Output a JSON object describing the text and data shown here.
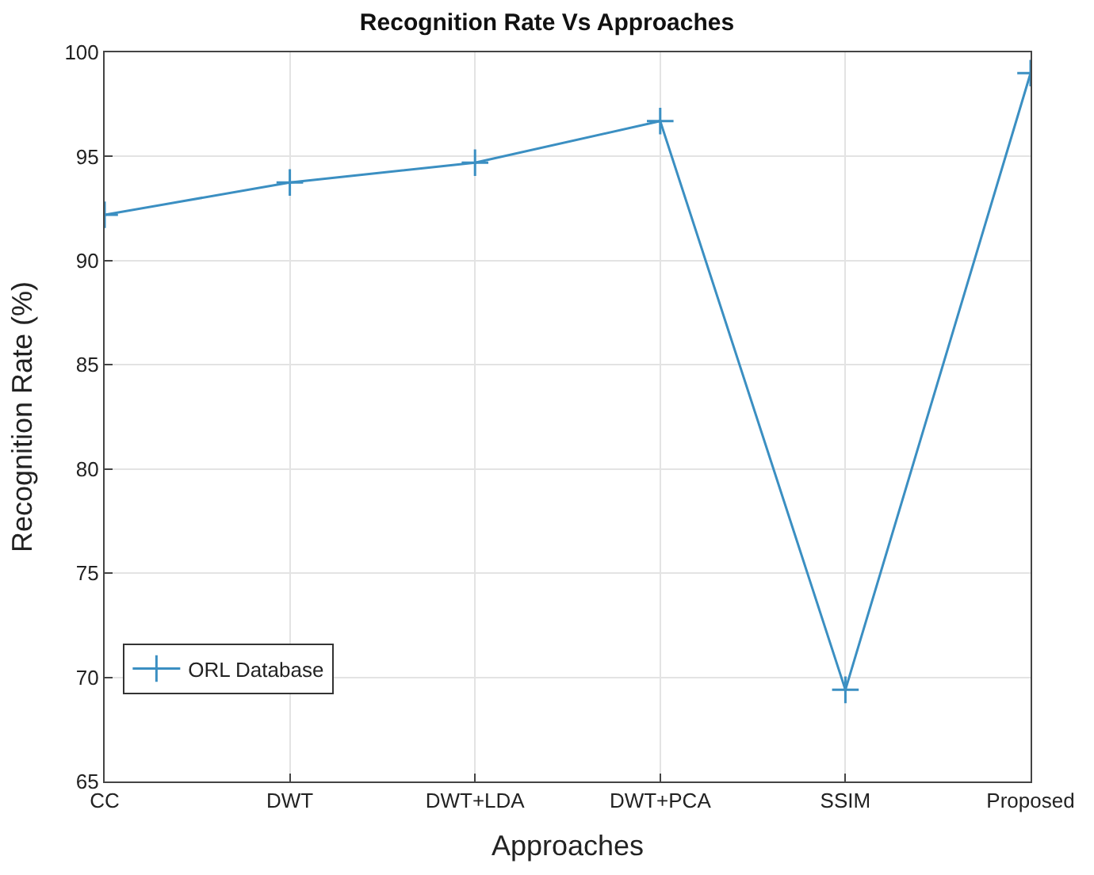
{
  "chart_data": {
    "type": "line",
    "title": "Recognition Rate Vs Approaches",
    "xlabel": "Approaches",
    "ylabel": "Recognition Rate (%)",
    "categories": [
      "CC",
      "DWT",
      "DWT+LDA",
      "DWT+PCA",
      "SSIM",
      "Proposed"
    ],
    "series": [
      {
        "name": "ORL Database",
        "color": "#3b8fc2",
        "values": [
          92.2,
          93.75,
          94.7,
          96.7,
          69.4,
          99.0
        ]
      }
    ],
    "ylim": [
      65,
      100
    ],
    "yticks": [
      65,
      70,
      75,
      80,
      85,
      90,
      95,
      100
    ],
    "grid": true,
    "legend": "bottom left",
    "marker": "cross",
    "line_style": "solid"
  }
}
